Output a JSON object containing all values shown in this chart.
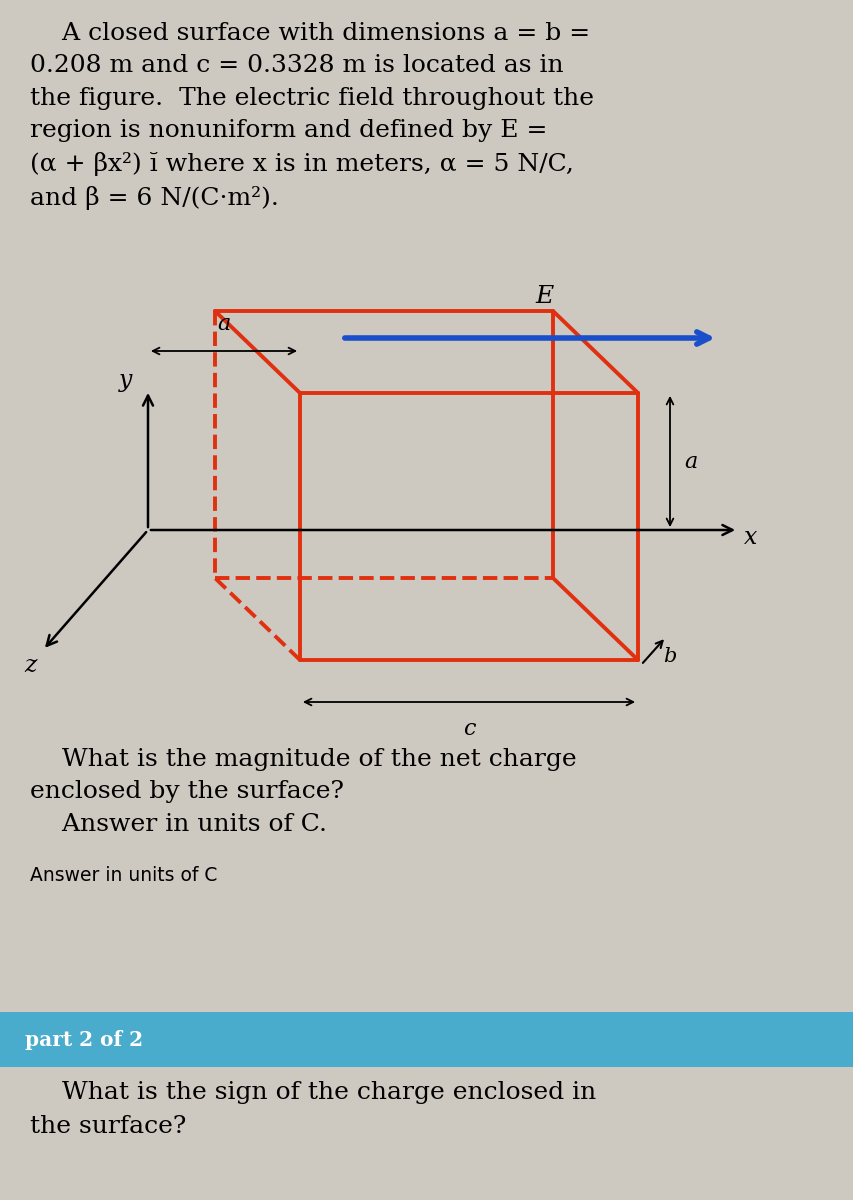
{
  "background_color": "#cdc8c0",
  "text_color": "#000000",
  "box_color": "#e03010",
  "axis_color": "#000000",
  "arrow_color": "#1a4fcc",
  "E_label": "E",
  "part2_bg": "#4aaccc",
  "part2_text": "part 2 of 2",
  "part2_question_line1": "    What is the sign of the charge enclosed in",
  "part2_question_line2": "the surface?"
}
